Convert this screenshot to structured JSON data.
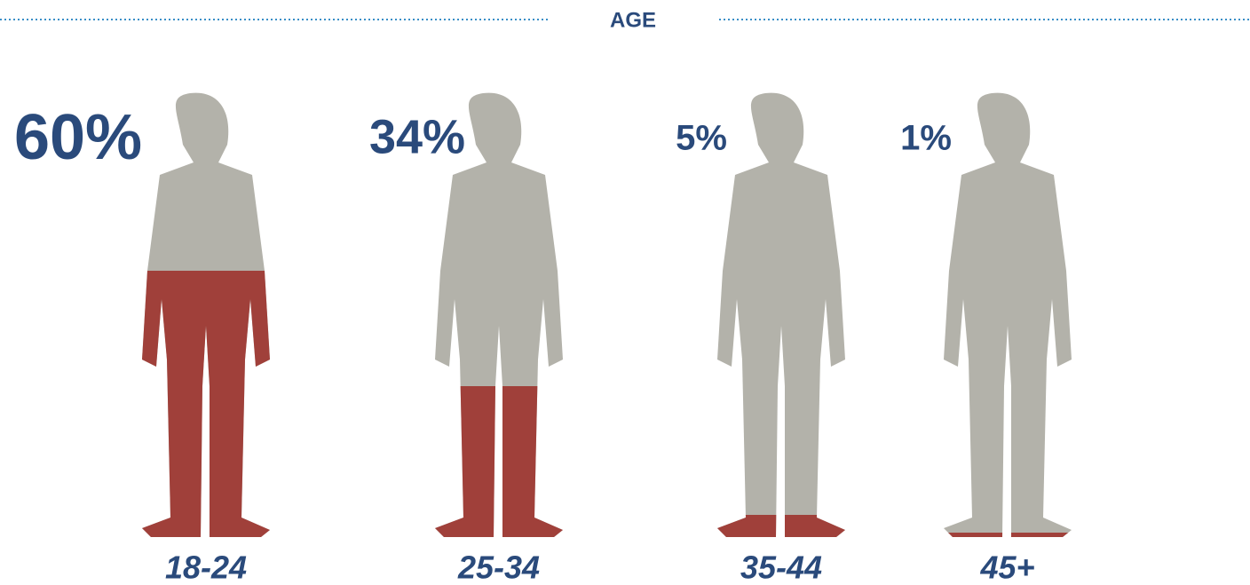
{
  "chart_data": {
    "type": "pictogram",
    "title": "AGE",
    "categories": [
      "18-24",
      "25-34",
      "35-44",
      "45+"
    ],
    "values": [
      60,
      34,
      5,
      1
    ],
    "value_labels": [
      "60%",
      "34%",
      "5%",
      "1%"
    ],
    "ylim": [
      0,
      100
    ],
    "color": "#a0403a",
    "base_color": "#b3b2aa"
  }
}
